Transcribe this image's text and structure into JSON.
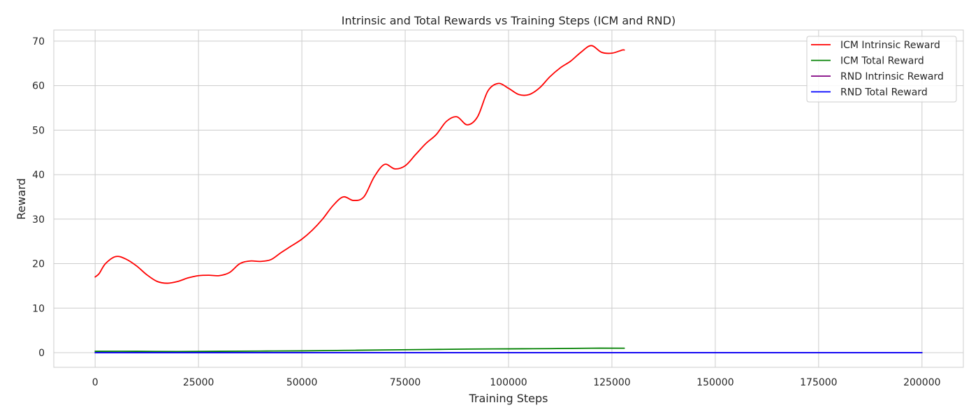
{
  "chart_data": {
    "type": "line",
    "title": "Intrinsic and Total Rewards vs Training Steps (ICM and RND)",
    "xlabel": "Training Steps",
    "ylabel": "Reward",
    "xlim": [
      -10000,
      210000
    ],
    "ylim": [
      -3.3,
      72.5
    ],
    "xticks": [
      0,
      25000,
      50000,
      75000,
      100000,
      125000,
      150000,
      175000,
      200000
    ],
    "yticks": [
      0,
      10,
      20,
      30,
      40,
      50,
      60,
      70
    ],
    "grid": true,
    "legend_position": "top-right",
    "series": [
      {
        "name": "ICM Intrinsic Reward",
        "color": "#ff0000",
        "x": [
          0,
          1000,
          2500,
          5000,
          7500,
          10000,
          12500,
          15000,
          17500,
          20000,
          22500,
          25000,
          27500,
          30000,
          32500,
          35000,
          37500,
          40000,
          42500,
          45000,
          47500,
          50000,
          52500,
          55000,
          57500,
          60000,
          62500,
          65000,
          67500,
          70000,
          72500,
          75000,
          77500,
          80000,
          82500,
          85000,
          87500,
          90000,
          92500,
          95000,
          97500,
          100000,
          102500,
          105000,
          107500,
          110000,
          112500,
          115000,
          117500,
          120000,
          122500,
          125000,
          127500,
          128000
        ],
        "y": [
          17.0,
          17.8,
          20.0,
          21.6,
          21.0,
          19.5,
          17.5,
          16.0,
          15.6,
          16.0,
          16.8,
          17.3,
          17.4,
          17.3,
          18.0,
          20.0,
          20.6,
          20.5,
          20.9,
          22.5,
          24.0,
          25.5,
          27.5,
          30.0,
          33.0,
          35.0,
          34.2,
          35.0,
          39.5,
          42.3,
          41.3,
          42.0,
          44.5,
          47.0,
          49.0,
          52.0,
          53.0,
          51.2,
          53.0,
          58.8,
          60.5,
          59.4,
          58.0,
          58.0,
          59.5,
          62.0,
          64.0,
          65.5,
          67.5,
          69.0,
          67.5,
          67.3,
          68.0,
          68.0
        ]
      },
      {
        "name": "ICM Total Reward",
        "color": "#008000",
        "x": [
          0,
          10000,
          20000,
          30000,
          40000,
          50000,
          60000,
          70000,
          80000,
          90000,
          100000,
          110000,
          120000,
          128000
        ],
        "y": [
          0.3,
          0.3,
          0.25,
          0.3,
          0.35,
          0.4,
          0.5,
          0.6,
          0.7,
          0.8,
          0.85,
          0.9,
          1.0,
          1.0
        ]
      },
      {
        "name": "RND Intrinsic Reward",
        "color": "#800080",
        "x": [
          0,
          200000
        ],
        "y": [
          0.0,
          0.0
        ]
      },
      {
        "name": "RND Total Reward",
        "color": "#0000ff",
        "x": [
          0,
          200000
        ],
        "y": [
          0.0,
          0.0
        ]
      }
    ]
  }
}
